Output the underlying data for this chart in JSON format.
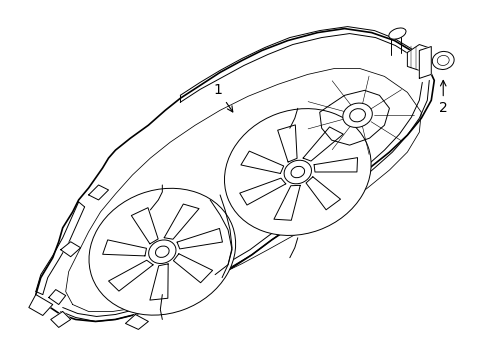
{
  "bg": "#ffffff",
  "lc": "#000000",
  "lw": 0.7,
  "lw_thick": 1.2,
  "label1": "1",
  "label2": "2",
  "fig_w": 4.89,
  "fig_h": 3.6,
  "dpi": 100
}
